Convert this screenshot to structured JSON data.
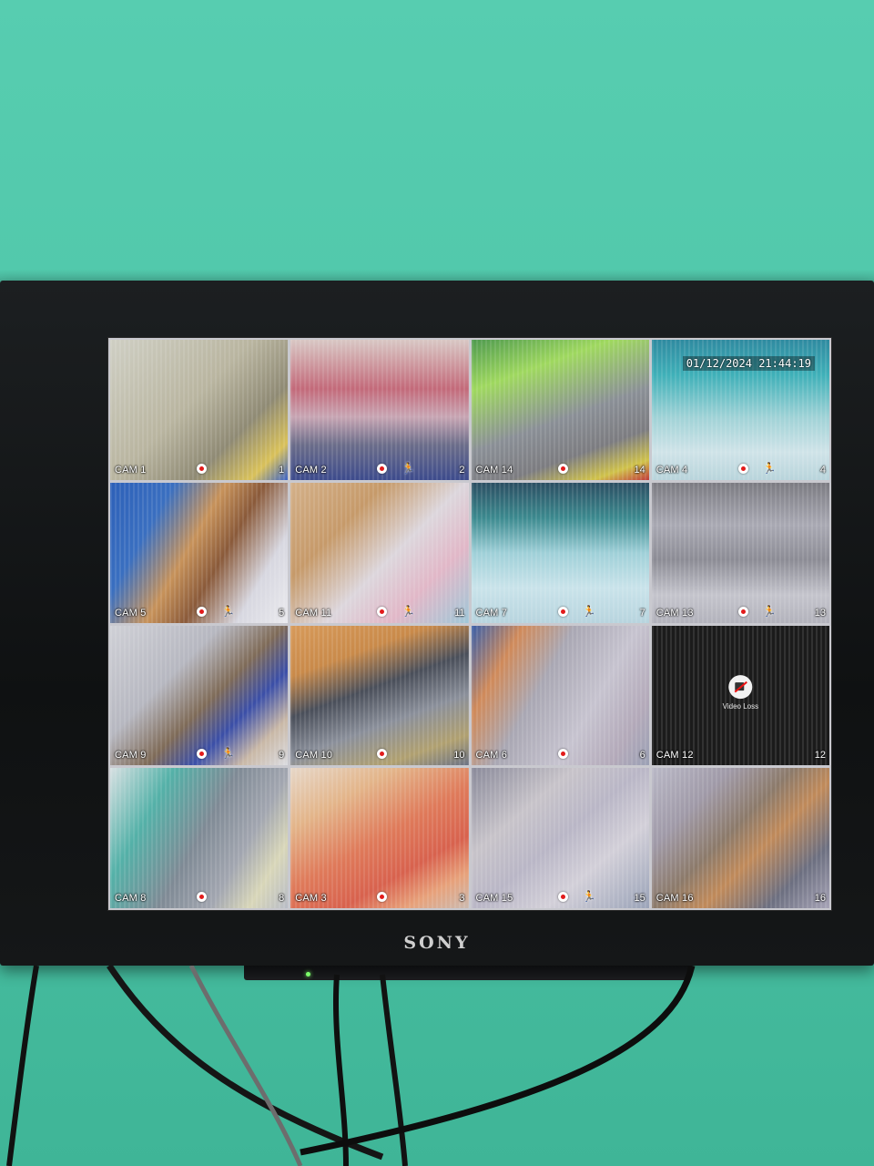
{
  "timestamp": "01/12/2024 21:44:19",
  "brand": "SONY",
  "video_loss_text": "Video Loss",
  "cameras": [
    {
      "label": "CAM 1",
      "number": "1",
      "motion": false
    },
    {
      "label": "CAM 2",
      "number": "2",
      "motion": true
    },
    {
      "label": "CAM 14",
      "number": "14",
      "motion": false
    },
    {
      "label": "CAM 4",
      "number": "4",
      "motion": true
    },
    {
      "label": "CAM 5",
      "number": "5",
      "motion": true
    },
    {
      "label": "CAM 11",
      "number": "11",
      "motion": true
    },
    {
      "label": "CAM 7",
      "number": "7",
      "motion": true
    },
    {
      "label": "CAM 13",
      "number": "13",
      "motion": true
    },
    {
      "label": "CAM 9",
      "number": "9",
      "motion": true
    },
    {
      "label": "CAM 10",
      "number": "10",
      "motion": false
    },
    {
      "label": "CAM 6",
      "number": "6",
      "motion": false
    },
    {
      "label": "CAM 12",
      "number": "12",
      "motion": false,
      "video_loss": true
    },
    {
      "label": "CAM 8",
      "number": "8",
      "motion": false
    },
    {
      "label": "CAM 3",
      "number": "3",
      "motion": false
    },
    {
      "label": "CAM 15",
      "number": "15",
      "motion": true
    },
    {
      "label": "CAM 16",
      "number": "16",
      "motion": false
    }
  ],
  "icons": {
    "record": "record-icon",
    "motion": "motion-person-icon",
    "video_loss": "video-loss-icon"
  },
  "colors": {
    "wall": "#4fc6a9",
    "bezel": "#121415",
    "record_dot": "#e21b1b",
    "motion": "#ff3636"
  }
}
